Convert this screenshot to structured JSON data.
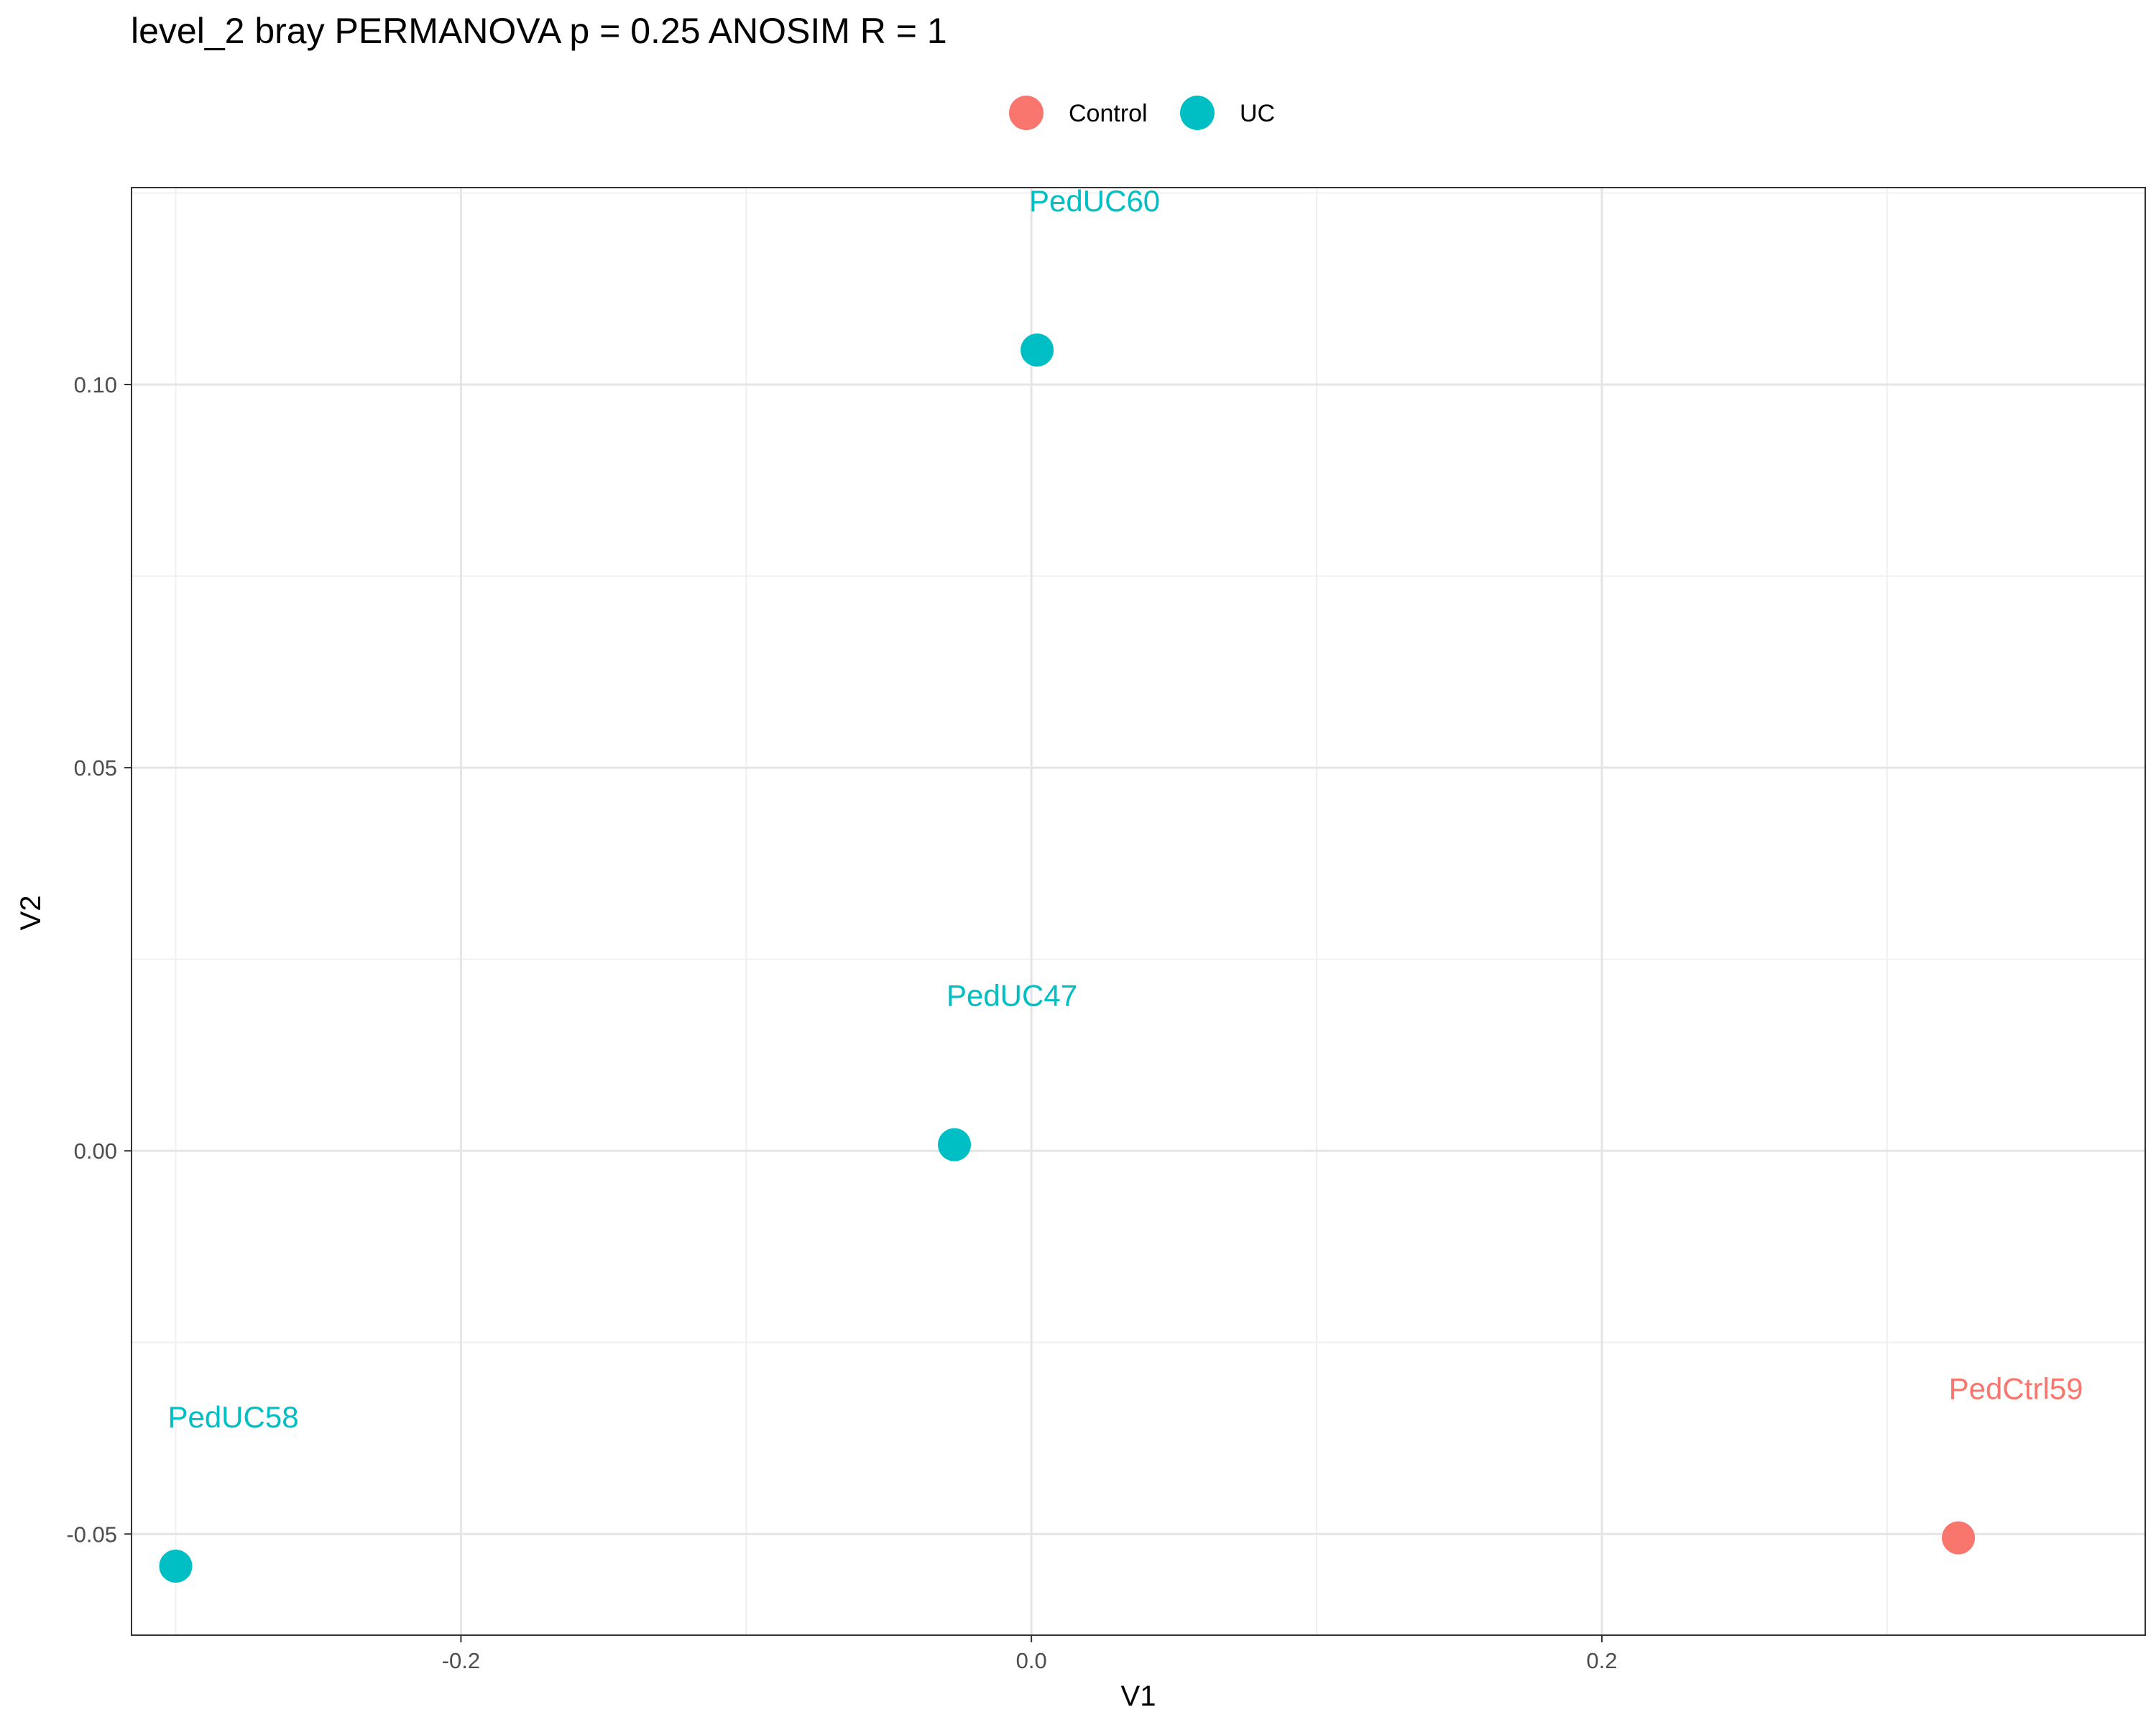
{
  "chart_data": {
    "type": "scatter",
    "title": "level_2 bray PERMANOVA p = 0.25 ANOSIM R = 1",
    "xlabel": "V1",
    "ylabel": "V2",
    "xlim": [
      -0.3155,
      0.3905
    ],
    "ylim": [
      -0.0632,
      0.1257
    ],
    "x_ticks": [
      -0.2,
      0.0,
      0.2
    ],
    "x_tick_labels": [
      "-0.2",
      "0.0",
      "0.2"
    ],
    "y_ticks": [
      -0.05,
      0.0,
      0.05,
      0.1
    ],
    "y_tick_labels": [
      "-0.05",
      "0.00",
      "0.05",
      "0.10"
    ],
    "grid": true,
    "legend_position": "top",
    "legend": [
      {
        "name": "Control",
        "color": "#F8766D"
      },
      {
        "name": "UC",
        "color": "#00BFC4"
      }
    ],
    "points": [
      {
        "label": "PedUC60",
        "group": "UC",
        "x": 0.002,
        "y": 0.1045
      },
      {
        "label": "PedUC47",
        "group": "UC",
        "x": -0.027,
        "y": 0.0008
      },
      {
        "label": "PedUC58",
        "group": "UC",
        "x": -0.3,
        "y": -0.0542
      },
      {
        "label": "PedCtrl59",
        "group": "Control",
        "x": 0.325,
        "y": -0.0505
      }
    ]
  }
}
